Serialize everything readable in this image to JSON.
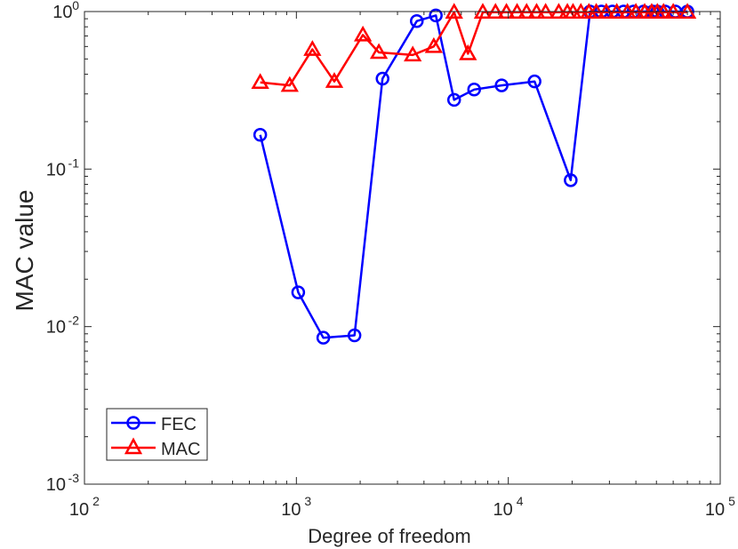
{
  "chart_data": {
    "type": "line",
    "xlabel": "Degree of freedom",
    "ylabel": "MAC value",
    "xscale": "log",
    "yscale": "log",
    "xlim": [
      100,
      100000
    ],
    "ylim": [
      0.001,
      1
    ],
    "xticks": [
      {
        "value": 100,
        "base": "10",
        "exp": "2"
      },
      {
        "value": 1000,
        "base": "10",
        "exp": "3"
      },
      {
        "value": 10000,
        "base": "10",
        "exp": "4"
      },
      {
        "value": 100000,
        "base": "10",
        "exp": "5"
      }
    ],
    "yticks": [
      {
        "value": 0.001,
        "base": "10",
        "exp": "-3"
      },
      {
        "value": 0.01,
        "base": "10",
        "exp": "-2"
      },
      {
        "value": 0.1,
        "base": "10",
        "exp": "-1"
      },
      {
        "value": 1,
        "base": "10",
        "exp": "0"
      }
    ],
    "grid": false,
    "legend_position": "bottom-left",
    "series": [
      {
        "name": "FEC",
        "color": "#0000ff",
        "marker": "circle",
        "points": [
          [
            675,
            0.165
          ],
          [
            1020,
            0.0165
          ],
          [
            1340,
            0.0085
          ],
          [
            1880,
            0.0088
          ],
          [
            2550,
            0.375
          ],
          [
            3700,
            0.87
          ],
          [
            4550,
            0.945
          ],
          [
            5550,
            0.275
          ],
          [
            6900,
            0.32
          ],
          [
            9300,
            0.34
          ],
          [
            13300,
            0.36
          ],
          [
            19700,
            0.085
          ],
          [
            24300,
            1.0
          ],
          [
            27500,
            1.0
          ],
          [
            31000,
            1.0
          ],
          [
            35000,
            1.0
          ],
          [
            39000,
            1.0
          ],
          [
            43500,
            1.0
          ],
          [
            48000,
            1.0
          ],
          [
            50500,
            1.0
          ],
          [
            55000,
            1.0
          ],
          [
            61500,
            1.0
          ],
          [
            70000,
            1.0
          ]
        ]
      },
      {
        "name": "MAC",
        "color": "#ff0000",
        "marker": "triangle",
        "points": [
          [
            675,
            0.355
          ],
          [
            930,
            0.34
          ],
          [
            1190,
            0.575
          ],
          [
            1510,
            0.36
          ],
          [
            2060,
            0.71
          ],
          [
            2450,
            0.55
          ],
          [
            3540,
            0.53
          ],
          [
            4450,
            0.6
          ],
          [
            5550,
            0.99
          ],
          [
            6450,
            0.54
          ],
          [
            7580,
            0.99
          ],
          [
            8700,
            0.99
          ],
          [
            9800,
            0.99
          ],
          [
            11000,
            0.99
          ],
          [
            12200,
            0.99
          ],
          [
            13600,
            0.99
          ],
          [
            15000,
            0.99
          ],
          [
            17300,
            0.99
          ],
          [
            19000,
            0.99
          ],
          [
            20200,
            0.99
          ],
          [
            22000,
            0.99
          ],
          [
            24000,
            0.99
          ],
          [
            26000,
            0.99
          ],
          [
            29000,
            0.99
          ],
          [
            32500,
            0.99
          ],
          [
            36500,
            0.99
          ],
          [
            40000,
            0.99
          ],
          [
            44000,
            0.99
          ],
          [
            47500,
            0.99
          ],
          [
            50500,
            0.99
          ],
          [
            54000,
            0.99
          ],
          [
            60000,
            0.99
          ],
          [
            70000,
            0.99
          ]
        ]
      }
    ]
  }
}
